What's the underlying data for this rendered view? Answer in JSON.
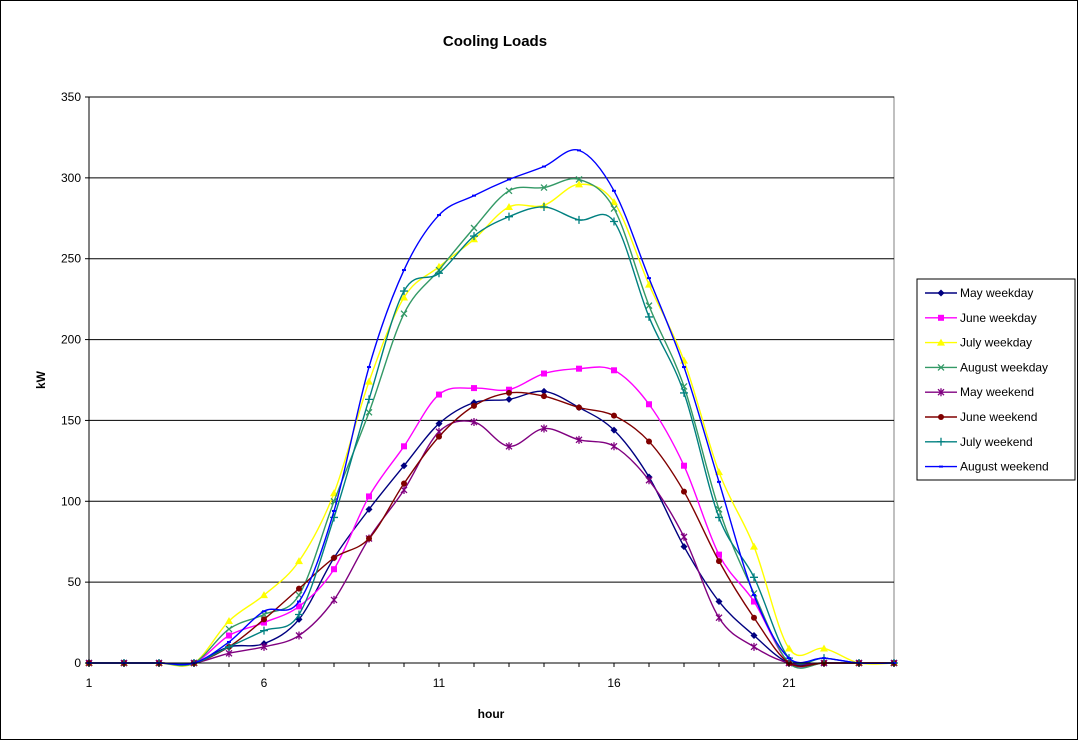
{
  "chart_data": {
    "type": "line",
    "title": "Cooling Loads",
    "xlabel": "hour",
    "ylabel": "kW",
    "ylim": [
      0,
      350
    ],
    "yticks": [
      0,
      50,
      100,
      150,
      200,
      250,
      300,
      350
    ],
    "xlim": [
      1,
      24
    ],
    "xticks": [
      1,
      6,
      11,
      16,
      21
    ],
    "grid": "horizontal",
    "legend_position": "right",
    "x": [
      1,
      2,
      3,
      4,
      5,
      6,
      7,
      8,
      9,
      10,
      11,
      12,
      13,
      14,
      15,
      16,
      17,
      18,
      19,
      20,
      21,
      22,
      23,
      24
    ],
    "series": [
      {
        "name": "May weekday",
        "color": "#000080",
        "marker": "diamond",
        "values": [
          0,
          0,
          0,
          0,
          10,
          12,
          27,
          65,
          95,
          122,
          148,
          161,
          163,
          168,
          158,
          144,
          115,
          72,
          38,
          17,
          0,
          0,
          0,
          0
        ]
      },
      {
        "name": "June weekday",
        "color": "#ff00ff",
        "marker": "square",
        "values": [
          0,
          0,
          0,
          0,
          17,
          25,
          35,
          58,
          103,
          134,
          166,
          170,
          169,
          179,
          182,
          181,
          160,
          122,
          67,
          38,
          0,
          0,
          0,
          0
        ]
      },
      {
        "name": "July weekday",
        "color": "#ffff00",
        "marker": "triangle",
        "values": [
          0,
          0,
          0,
          0,
          26,
          42,
          63,
          105,
          174,
          226,
          245,
          262,
          282,
          283,
          296,
          285,
          234,
          187,
          118,
          72,
          9,
          9,
          0,
          0
        ]
      },
      {
        "name": "August weekday",
        "color": "#339966",
        "marker": "x",
        "values": [
          0,
          0,
          0,
          0,
          21,
          30,
          42,
          100,
          155,
          216,
          243,
          269,
          292,
          294,
          299,
          281,
          221,
          171,
          95,
          43,
          0,
          0,
          0,
          0
        ]
      },
      {
        "name": "May weekend",
        "color": "#800080",
        "marker": "star",
        "values": [
          0,
          0,
          0,
          0,
          6,
          10,
          17,
          39,
          77,
          107,
          143,
          149,
          134,
          145,
          138,
          134,
          113,
          78,
          28,
          10,
          0,
          0,
          0,
          0
        ]
      },
      {
        "name": "June weekend",
        "color": "#800000",
        "marker": "circle",
        "values": [
          0,
          0,
          0,
          0,
          10,
          27,
          46,
          65,
          77,
          111,
          140,
          159,
          167,
          165,
          158,
          153,
          137,
          106,
          63,
          28,
          0,
          0,
          0,
          0
        ]
      },
      {
        "name": "July weekend",
        "color": "#008080",
        "marker": "plus",
        "values": [
          0,
          0,
          0,
          0,
          10,
          20,
          30,
          90,
          163,
          230,
          241,
          264,
          276,
          282,
          274,
          273,
          214,
          167,
          90,
          53,
          3,
          3,
          0,
          0
        ]
      },
      {
        "name": "August weekend",
        "color": "#0000ff",
        "marker": "dash",
        "values": [
          0,
          0,
          0,
          0,
          13,
          32,
          38,
          94,
          183,
          243,
          277,
          289,
          299,
          307,
          317,
          292,
          238,
          183,
          112,
          42,
          3,
          3,
          0,
          0
        ]
      }
    ]
  }
}
